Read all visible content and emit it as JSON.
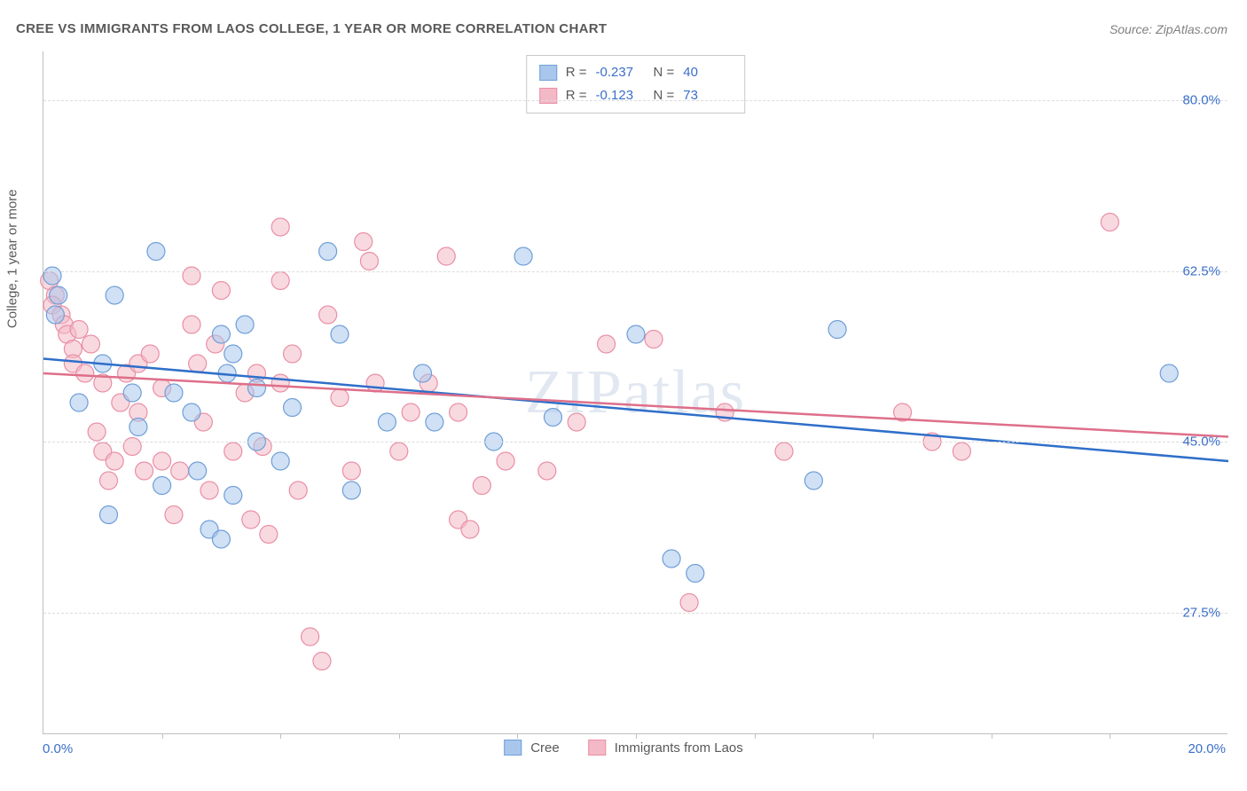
{
  "title": "CREE VS IMMIGRANTS FROM LAOS COLLEGE, 1 YEAR OR MORE CORRELATION CHART",
  "source": "Source: ZipAtlas.com",
  "watermark": "ZIPatlas",
  "y_axis_title": "College, 1 year or more",
  "x_axis": {
    "min_label": "0.0%",
    "max_label": "20.0%",
    "min": 0.0,
    "max": 20.0,
    "tick_positions": [
      2.0,
      4.0,
      6.0,
      8.0,
      10.0,
      12.0,
      14.0,
      16.0,
      18.0
    ]
  },
  "y_axis": {
    "min": 15.0,
    "max": 85.0,
    "gridlines": [
      {
        "value": 80.0,
        "label": "80.0%"
      },
      {
        "value": 62.5,
        "label": "62.5%"
      },
      {
        "value": 45.0,
        "label": "45.0%"
      },
      {
        "value": 27.5,
        "label": "27.5%"
      }
    ]
  },
  "series": [
    {
      "name": "Cree",
      "fill": "#a9c7ec",
      "stroke": "#6f9fd8",
      "fill_opacity": 0.55,
      "r_label": "R =",
      "r_value": "-0.237",
      "n_label": "N =",
      "n_value": "40",
      "trend": {
        "y_at_xmin": 53.5,
        "y_at_xmax": 43.0,
        "color": "#2f6fc9"
      },
      "points": [
        [
          0.15,
          62.0
        ],
        [
          0.25,
          60.0
        ],
        [
          0.2,
          58.0
        ],
        [
          1.2,
          60.0
        ],
        [
          1.9,
          64.5
        ],
        [
          1.0,
          53.0
        ],
        [
          1.5,
          50.0
        ],
        [
          1.1,
          37.5
        ],
        [
          2.2,
          50.0
        ],
        [
          2.5,
          48.0
        ],
        [
          2.6,
          42.0
        ],
        [
          2.8,
          36.0
        ],
        [
          3.0,
          56.0
        ],
        [
          3.1,
          52.0
        ],
        [
          3.2,
          54.0
        ],
        [
          3.4,
          57.0
        ],
        [
          3.6,
          50.5
        ],
        [
          3.6,
          45.0
        ],
        [
          3.0,
          35.0
        ],
        [
          3.2,
          39.5
        ],
        [
          4.2,
          48.5
        ],
        [
          4.8,
          64.5
        ],
        [
          5.0,
          56.0
        ],
        [
          5.2,
          40.0
        ],
        [
          5.8,
          47.0
        ],
        [
          6.4,
          52.0
        ],
        [
          6.6,
          47.0
        ],
        [
          7.6,
          45.0
        ],
        [
          8.1,
          64.0
        ],
        [
          8.6,
          47.5
        ],
        [
          10.0,
          56.0
        ],
        [
          10.6,
          33.0
        ],
        [
          11.0,
          31.5
        ],
        [
          13.4,
          56.5
        ],
        [
          13.0,
          41.0
        ],
        [
          19.0,
          52.0
        ],
        [
          0.6,
          49.0
        ],
        [
          1.6,
          46.5
        ],
        [
          4.0,
          43.0
        ],
        [
          2.0,
          40.5
        ]
      ]
    },
    {
      "name": "Immigrants from Laos",
      "fill": "#f4b9c6",
      "stroke": "#e98fa5",
      "fill_opacity": 0.55,
      "r_label": "R =",
      "r_value": "-0.123",
      "n_label": "N =",
      "n_value": "73",
      "trend": {
        "y_at_xmin": 52.0,
        "y_at_xmax": 45.5,
        "color": "#de6f8a"
      },
      "points": [
        [
          0.1,
          61.5
        ],
        [
          0.2,
          60.0
        ],
        [
          0.15,
          59.0
        ],
        [
          0.3,
          58.0
        ],
        [
          0.35,
          57.0
        ],
        [
          0.4,
          56.0
        ],
        [
          0.5,
          54.5
        ],
        [
          0.5,
          53.0
        ],
        [
          0.6,
          56.5
        ],
        [
          0.7,
          52.0
        ],
        [
          0.8,
          55.0
        ],
        [
          0.9,
          46.0
        ],
        [
          1.0,
          51.0
        ],
        [
          1.0,
          44.0
        ],
        [
          1.1,
          41.0
        ],
        [
          1.2,
          43.0
        ],
        [
          1.3,
          49.0
        ],
        [
          1.4,
          52.0
        ],
        [
          1.5,
          44.5
        ],
        [
          1.6,
          53.0
        ],
        [
          1.6,
          48.0
        ],
        [
          1.7,
          42.0
        ],
        [
          1.8,
          54.0
        ],
        [
          2.0,
          50.5
        ],
        [
          2.0,
          43.0
        ],
        [
          2.2,
          37.5
        ],
        [
          2.3,
          42.0
        ],
        [
          2.5,
          62.0
        ],
        [
          2.5,
          57.0
        ],
        [
          2.6,
          53.0
        ],
        [
          2.7,
          47.0
        ],
        [
          2.8,
          40.0
        ],
        [
          2.9,
          55.0
        ],
        [
          3.0,
          60.5
        ],
        [
          3.2,
          44.0
        ],
        [
          3.4,
          50.0
        ],
        [
          3.5,
          37.0
        ],
        [
          3.6,
          52.0
        ],
        [
          3.7,
          44.5
        ],
        [
          3.8,
          35.5
        ],
        [
          4.0,
          67.0
        ],
        [
          4.0,
          61.5
        ],
        [
          4.0,
          51.0
        ],
        [
          4.2,
          54.0
        ],
        [
          4.3,
          40.0
        ],
        [
          4.5,
          25.0
        ],
        [
          4.7,
          22.5
        ],
        [
          4.8,
          58.0
        ],
        [
          5.0,
          49.5
        ],
        [
          5.2,
          42.0
        ],
        [
          5.4,
          65.5
        ],
        [
          5.5,
          63.5
        ],
        [
          5.6,
          51.0
        ],
        [
          6.0,
          44.0
        ],
        [
          6.2,
          48.0
        ],
        [
          6.5,
          51.0
        ],
        [
          6.8,
          64.0
        ],
        [
          7.0,
          48.0
        ],
        [
          7.0,
          37.0
        ],
        [
          7.2,
          36.0
        ],
        [
          7.4,
          40.5
        ],
        [
          7.8,
          43.0
        ],
        [
          8.5,
          42.0
        ],
        [
          9.0,
          47.0
        ],
        [
          9.5,
          55.0
        ],
        [
          10.3,
          55.5
        ],
        [
          10.9,
          28.5
        ],
        [
          11.5,
          48.0
        ],
        [
          12.5,
          44.0
        ],
        [
          14.5,
          48.0
        ],
        [
          15.0,
          45.0
        ],
        [
          15.5,
          44.0
        ],
        [
          18.0,
          67.5
        ]
      ]
    }
  ],
  "marker_radius": 10,
  "bottom_legend": {
    "series1": "Cree",
    "series2": "Immigrants from Laos"
  },
  "colors": {
    "title": "#595959",
    "axis_value": "#3b6fc9",
    "grid": "#dcdcdc",
    "border": "#bfbfbf",
    "background": "#ffffff"
  }
}
